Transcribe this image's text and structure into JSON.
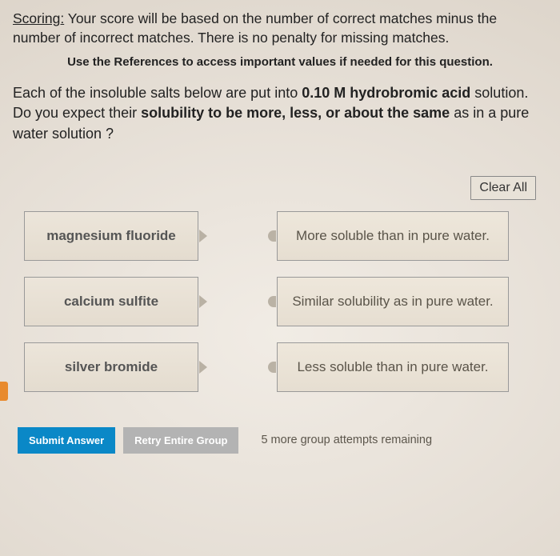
{
  "scoring": {
    "label": "Scoring:",
    "text": " Your score will be based on the number of correct matches minus the number of incorrect matches. There is no penalty for missing matches."
  },
  "references_hint": "Use the References to access important values if needed for this question.",
  "question": {
    "part1": "Each of the insoluble salts below are put into ",
    "bold1": "0.10 M hydrobromic acid",
    "part2": " solution. Do you expect their ",
    "bold2": "solubility to be more, less, or about the same",
    "part3": " as in a pure water solution ?"
  },
  "clear_all": "Clear All",
  "salts": [
    {
      "name": "magnesium fluoride"
    },
    {
      "name": "calcium sulfite"
    },
    {
      "name": "silver bromide"
    }
  ],
  "answers": [
    {
      "text": "More soluble than in pure water."
    },
    {
      "text": "Similar solubility as in pure water."
    },
    {
      "text": "Less soluble than in pure water."
    }
  ],
  "footer": {
    "submit": "Submit Answer",
    "retry": "Retry Entire Group",
    "attempts": "5 more group attempts remaining"
  },
  "colors": {
    "submit_bg": "#0a88c7",
    "retry_bg": "#b3b3b3",
    "card_border": "#999999",
    "background": "#ebe5de"
  }
}
